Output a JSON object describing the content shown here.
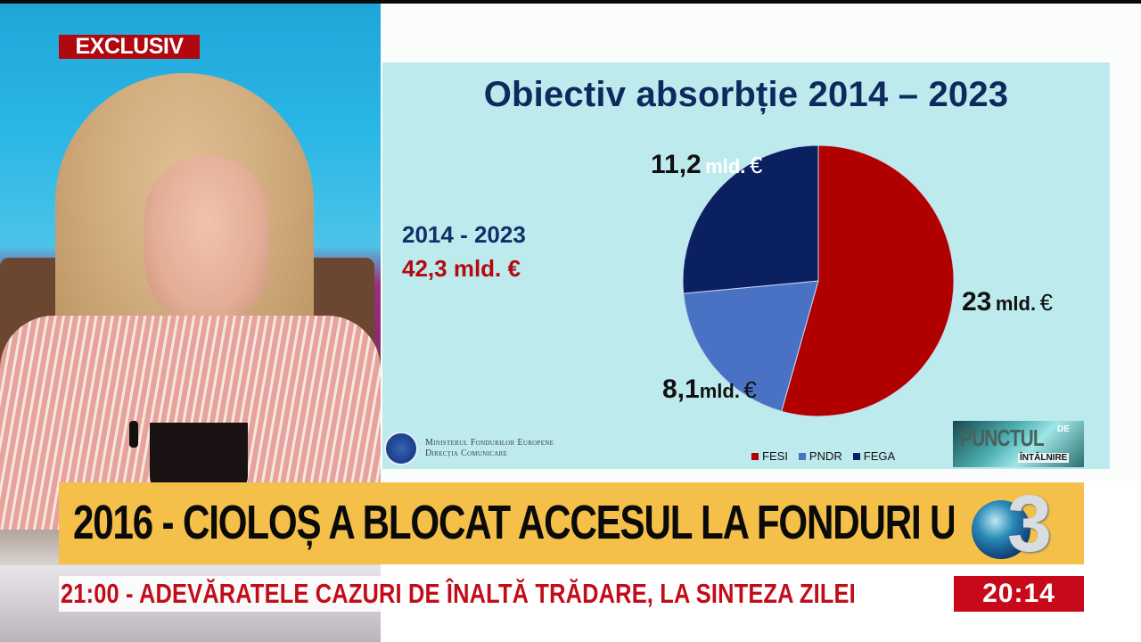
{
  "broadcast": {
    "badge": "EXCLUSIV",
    "headline": "2016 - CIOLOȘ A BLOCAT ACCESUL LA FONDURI UE",
    "ticker": "21:00 - ADEVĂRATELE CAZURI DE ÎNALTĂ TRĂDARE, LA SINTEZA ZILEI",
    "clock": "20:14",
    "channel_logo": "3",
    "colors": {
      "badge_red": "#b1070e",
      "headline_yellow": "#f4c04a",
      "ticker_red": "#c10d1a",
      "clock_bg": "#c8091a"
    }
  },
  "slide": {
    "title": "Obiectiv absorbție 2014 – 2023",
    "period": "2014 - 2023",
    "total": "42,3 mld. €",
    "ministry_line1": "Ministerul Fondurilor Europene",
    "ministry_line2": "Direcția Comunicare",
    "show_logo_main": "PUNCTUL",
    "show_logo_de": "DE",
    "show_logo_sub": "ÎNTÂLNIRE",
    "labels": {
      "fesi_num": "23",
      "pndr_num": "8,1",
      "fega_num": "11,2",
      "unit": "mld.",
      "currency": "€"
    },
    "legend": [
      {
        "name": "FESI",
        "color": "#b00000"
      },
      {
        "name": "PNDR",
        "color": "#4a72c4"
      },
      {
        "name": "FEGA",
        "color": "#0b2060"
      }
    ]
  },
  "chart_data": {
    "type": "pie",
    "title": "Obiectiv absorbție 2014 – 2023",
    "categories": [
      "FESI",
      "PNDR",
      "FEGA"
    ],
    "values": [
      23,
      8.1,
      11.2
    ],
    "unit": "mld. €",
    "total": 42.3,
    "colors": [
      "#b00000",
      "#4a72c4",
      "#0b2060"
    ],
    "legend_position": "bottom",
    "annotations": [
      "2014 - 2023",
      "42,3 mld. €"
    ]
  }
}
